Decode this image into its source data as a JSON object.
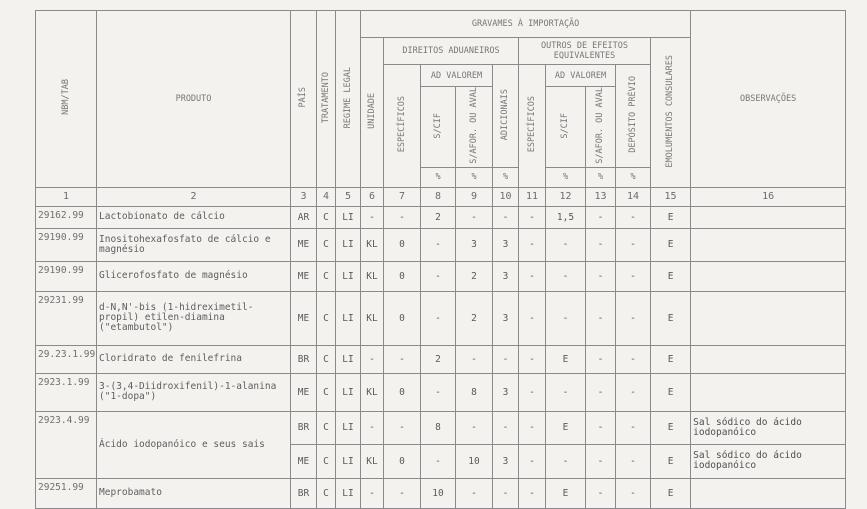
{
  "header": {
    "ncm": "NBM/TAB",
    "produto": "PRODUTO",
    "pais": "PAÍS",
    "tratamento": "TRATAMENTO",
    "regime": "REGIME LEGAL",
    "gravames": "GRAVAMES À IMPORTAÇÃO",
    "unidade": "UNIDADE",
    "direitos": "DIREITOS ADUANEIROS",
    "outros": "OUTROS DE EFEITOS EQUIVALENTES",
    "especificos": "ESPECÍFICOS",
    "ad_valorem": "AD VALOREM",
    "s_cif": "S/CIF",
    "s_afor": "S/AFOR. OU AVAL",
    "adicionais": "ADICIONAIS",
    "deposito": "DEPÓSITO PRÉVIO",
    "emolumentos": "EMOLUMENTOS CONSULARES",
    "observacoes": "OBSERVAÇÕES",
    "pct": "%"
  },
  "column_numbers": [
    "1",
    "2",
    "3",
    "4",
    "5",
    "6",
    "7",
    "8",
    "9",
    "10",
    "11",
    "12",
    "13",
    "14",
    "15",
    "16"
  ],
  "rows": [
    {
      "ncm": "29162.99",
      "produto": "Lactobionato de cálcio",
      "cells": [
        "AR",
        "C",
        "LI",
        "-",
        "-",
        "2",
        "-",
        "-",
        "-",
        "1,5",
        "-",
        "-",
        "E"
      ],
      "obs": ""
    },
    {
      "ncm": "29190.99",
      "produto": "Inositohexafosfato de cálcio e magnésio",
      "cells": [
        "ME",
        "C",
        "LI",
        "KL",
        "0",
        "-",
        "3",
        "3",
        "-",
        "-",
        "-",
        "-",
        "E"
      ],
      "obs": ""
    },
    {
      "ncm": "29190.99",
      "produto": "Glicerofosfato de magnésio",
      "cells": [
        "ME",
        "C",
        "LI",
        "KL",
        "0",
        "-",
        "2",
        "3",
        "-",
        "-",
        "-",
        "-",
        "E"
      ],
      "obs": ""
    },
    {
      "ncm": "29231.99",
      "produto": "d-N,N'-bis (1-hidreximetil-propil) etilen-diamina (\"etambutol\")",
      "cells": [
        "ME",
        "C",
        "LI",
        "KL",
        "0",
        "-",
        "2",
        "3",
        "-",
        "-",
        "-",
        "-",
        "E"
      ],
      "obs": ""
    },
    {
      "ncm": "29.23.1.99",
      "produto": "Cloridrato de fenilefrina",
      "cells": [
        "BR",
        "C",
        "LI",
        "-",
        "-",
        "2",
        "-",
        "-",
        "-",
        "E",
        "-",
        "-",
        "E"
      ],
      "obs": ""
    },
    {
      "ncm": "2923.1.99",
      "produto": "3-(3,4-Diidroxifenil)-1-alanina (\"1-dopa\")",
      "cells": [
        "ME",
        "C",
        "LI",
        "KL",
        "0",
        "-",
        "8",
        "3",
        "-",
        "-",
        "-",
        "-",
        "E"
      ],
      "obs": ""
    },
    {
      "ncm": "2923.4.99",
      "produto": "Ácido iodopanóico e seus sais",
      "cells": [
        "BR",
        "C",
        "LI",
        "-",
        "-",
        "8",
        "-",
        "-",
        "-",
        "E",
        "-",
        "-",
        "E"
      ],
      "obs": "Sal sódico do ácido iodopanóico",
      "span": 2
    },
    {
      "cells": [
        "ME",
        "C",
        "LI",
        "KL",
        "0",
        "-",
        "10",
        "3",
        "-",
        "-",
        "-",
        "-",
        "E"
      ],
      "obs": "Sal sódico do ácido iodopanóico",
      "cont": true
    },
    {
      "ncm": "29251.99",
      "produto": "Meprobamato",
      "cells": [
        "BR",
        "C",
        "LI",
        "-",
        "-",
        "10",
        "-",
        "-",
        "-",
        "E",
        "-",
        "-",
        "E"
      ],
      "obs": ""
    }
  ]
}
